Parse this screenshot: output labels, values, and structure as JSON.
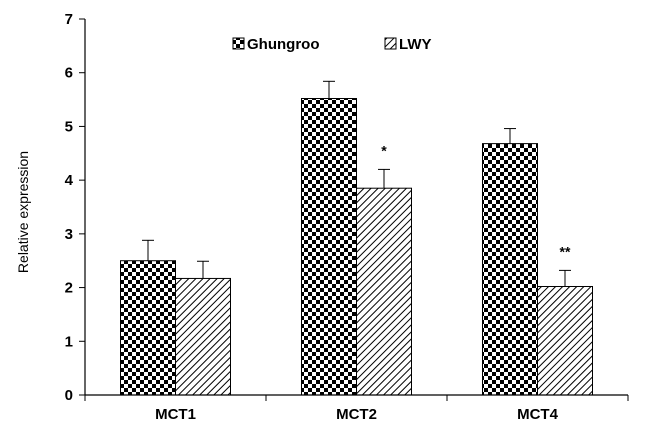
{
  "chart_data": {
    "type": "bar",
    "title": "",
    "xlabel": "",
    "ylabel": "Relative expression",
    "ylim": [
      0,
      7
    ],
    "yticks": [
      0,
      1,
      2,
      3,
      4,
      5,
      6,
      7
    ],
    "grid": false,
    "legend_position": "top-center",
    "categories": [
      "MCT1",
      "MCT2",
      "MCT4"
    ],
    "series": [
      {
        "name": "Ghungroo",
        "pattern": "checkerboard",
        "values": [
          2.5,
          5.52,
          4.68
        ],
        "errors": [
          0.38,
          0.32,
          0.28
        ],
        "annotations": [
          "",
          "",
          ""
        ]
      },
      {
        "name": "LWY",
        "pattern": "diagonal-hatch",
        "values": [
          2.17,
          3.85,
          2.02
        ],
        "errors": [
          0.32,
          0.35,
          0.3
        ],
        "annotations": [
          "",
          "*",
          "**"
        ]
      }
    ],
    "colors": {
      "pattern_fg": "#000000",
      "pattern_bg": "#ffffff",
      "axis": "#000000"
    }
  }
}
